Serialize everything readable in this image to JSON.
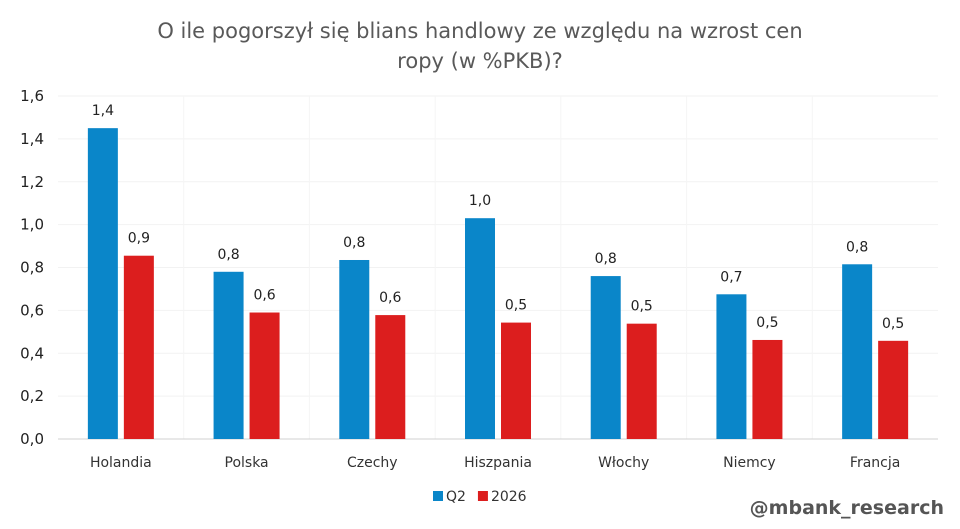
{
  "chart_data": {
    "type": "bar",
    "title_lines": [
      "O ile pogorszył się blians handlowy ze względu na wzrost cen",
      "ropy (w %PKB)?"
    ],
    "categories": [
      "Holandia",
      "Polska",
      "Czechy",
      "Hiszpania",
      "Włochy",
      "Niemcy",
      "Francja"
    ],
    "series": [
      {
        "name": "Q2",
        "color": "#0a86c9",
        "values": [
          1.45,
          0.78,
          0.835,
          1.03,
          0.76,
          0.675,
          0.815
        ],
        "labels": [
          "1,4",
          "0,8",
          "0,8",
          "1,0",
          "0,8",
          "0,7",
          "0,8"
        ]
      },
      {
        "name": "2026",
        "color": "#dc1e1e",
        "values": [
          0.855,
          0.59,
          0.578,
          0.543,
          0.538,
          0.462,
          0.458
        ],
        "labels": [
          "0,9",
          "0,6",
          "0,6",
          "0,5",
          "0,5",
          "0,5",
          "0,5"
        ]
      }
    ],
    "ylim": [
      0,
      1.6
    ],
    "yticks": [
      "0,0",
      "0,2",
      "0,4",
      "0,6",
      "0,8",
      "1,0",
      "1,2",
      "1,4",
      "1,6"
    ],
    "xlabel": "",
    "ylabel": "",
    "grid": true,
    "legend": "bottom"
  },
  "watermark": "@mbank_research"
}
